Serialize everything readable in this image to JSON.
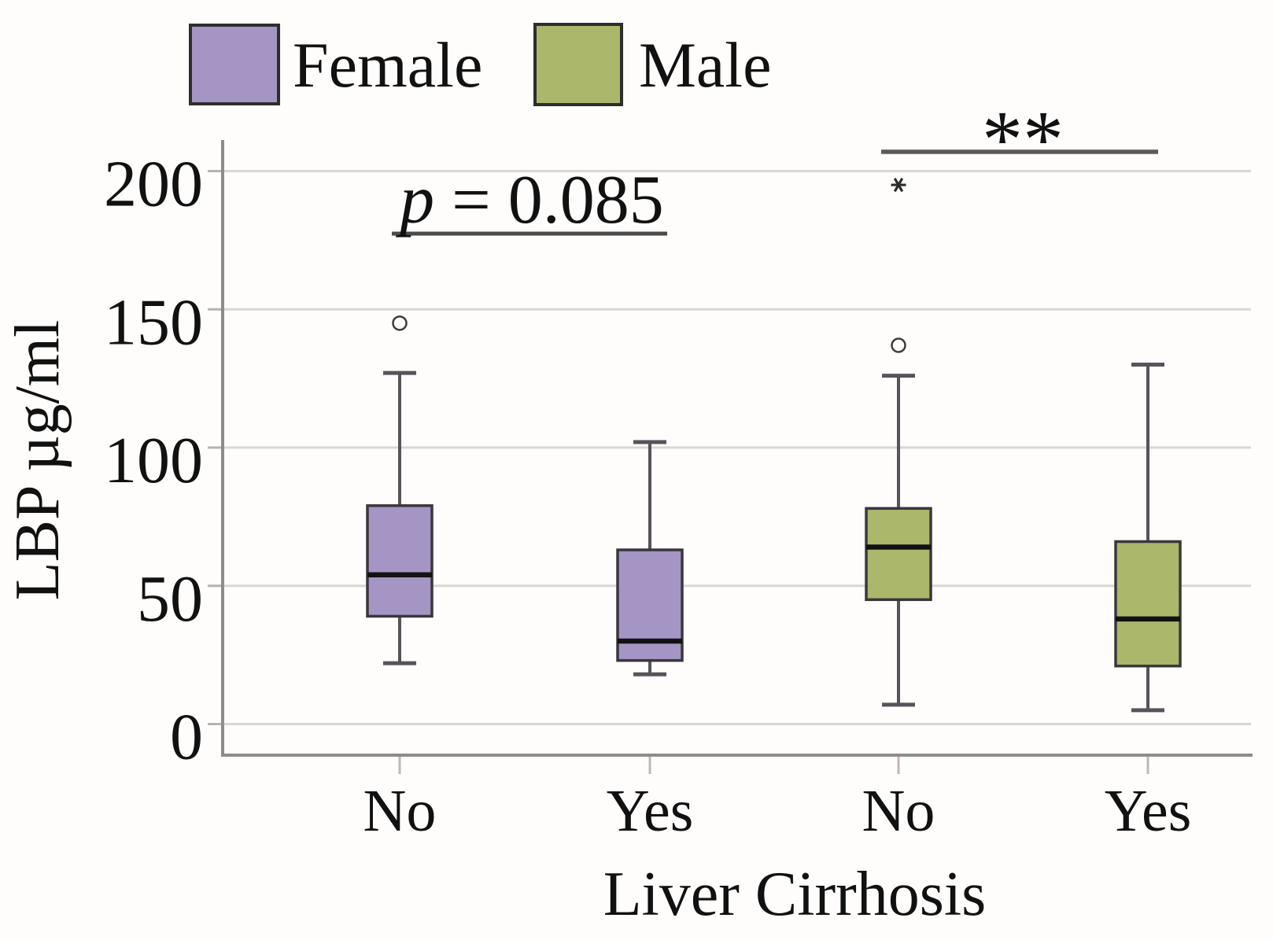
{
  "chart_data": {
    "type": "boxplot",
    "title": "",
    "ylabel": "LBP µg/ml",
    "xlabel": "Liver Cirrhosis",
    "ylim": [
      -11,
      212
    ],
    "yticks": [
      0,
      50,
      100,
      150,
      200
    ],
    "grid": true,
    "legend_position": "top-left",
    "legend": [
      {
        "label": "Female",
        "color": "#a495c5"
      },
      {
        "label": "Male",
        "color": "#abb76a"
      }
    ],
    "x_categories": [
      "No",
      "Yes",
      "No",
      "Yes"
    ],
    "series": [
      {
        "name": "Female",
        "category": "No",
        "whisker_low": 22,
        "q1": 39,
        "median": 54,
        "q3": 79,
        "whisker_high": 127,
        "outliers": [
          {
            "value": 145,
            "marker": "circle"
          }
        ]
      },
      {
        "name": "Female",
        "category": "Yes",
        "whisker_low": 18,
        "q1": 23,
        "median": 30,
        "q3": 63,
        "whisker_high": 102,
        "outliers": []
      },
      {
        "name": "Male",
        "category": "No",
        "whisker_low": 7,
        "q1": 45,
        "median": 64,
        "q3": 78,
        "whisker_high": 126,
        "outliers": [
          {
            "value": 137,
            "marker": "circle"
          },
          {
            "value": 195,
            "marker": "star"
          }
        ]
      },
      {
        "name": "Male",
        "category": "Yes",
        "whisker_low": 5,
        "q1": 21,
        "median": 38,
        "q3": 66,
        "whisker_high": 130,
        "outliers": []
      }
    ],
    "annotations": [
      {
        "id": "p-value",
        "italic_prefix": "p",
        "rest": " = 0.085",
        "display": "p = 0.085",
        "compares": [
          "Female No",
          "Female Yes"
        ]
      },
      {
        "id": "significance",
        "text": "**",
        "compares": [
          "Male No",
          "Male Yes"
        ]
      }
    ]
  }
}
